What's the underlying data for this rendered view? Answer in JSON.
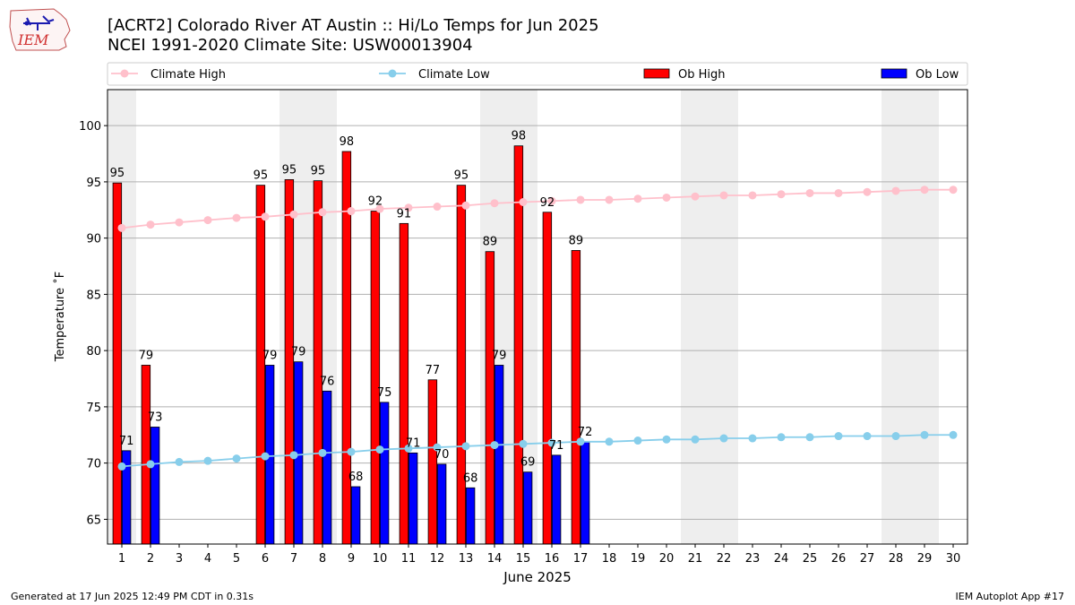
{
  "header": {
    "title_line1": "[ACRT2] Colorado River  AT Austin :: Hi/Lo Temps for Jun 2025",
    "title_line2": "NCEI 1991-2020 Climate Site: USW00013904",
    "logo_text": "IEM"
  },
  "footer": {
    "generated": "Generated at 17 Jun 2025 12:49 PM CDT in 0.31s",
    "app": "IEM Autoplot App #17"
  },
  "colors": {
    "ob_high": "#ff0000",
    "ob_low": "#0000ff",
    "climate_high": "#ffc0cb",
    "climate_low": "#87ceeb",
    "weekend_shade": "#eeeeee",
    "grid": "#b0b0b0"
  },
  "chart_data": {
    "type": "bar",
    "xlabel": "June 2025",
    "ylabel": "Temperature ˚F",
    "ylim": [
      62.8,
      103.2
    ],
    "yticks": [
      65,
      70,
      75,
      80,
      85,
      90,
      95,
      100
    ],
    "grid": "horizontal",
    "legend_position": "top",
    "categories": [
      "1",
      "2",
      "3",
      "4",
      "5",
      "6",
      "7",
      "8",
      "9",
      "10",
      "11",
      "12",
      "13",
      "14",
      "15",
      "16",
      "17",
      "18",
      "19",
      "20",
      "21",
      "22",
      "23",
      "24",
      "25",
      "26",
      "27",
      "28",
      "29",
      "30"
    ],
    "shaded_days": [
      1,
      7,
      8,
      14,
      15,
      21,
      22,
      28,
      29
    ],
    "series": [
      {
        "name": "Climate High",
        "kind": "line",
        "values": [
          90.9,
          91.2,
          91.4,
          91.6,
          91.8,
          91.9,
          92.1,
          92.3,
          92.4,
          92.6,
          92.7,
          92.8,
          92.9,
          93.1,
          93.2,
          93.3,
          93.4,
          93.4,
          93.5,
          93.6,
          93.7,
          93.8,
          93.8,
          93.9,
          94.0,
          94.0,
          94.1,
          94.2,
          94.3,
          94.3
        ]
      },
      {
        "name": "Climate Low",
        "kind": "line",
        "values": [
          69.7,
          69.9,
          70.1,
          70.2,
          70.4,
          70.6,
          70.7,
          70.9,
          71.0,
          71.2,
          71.3,
          71.4,
          71.5,
          71.6,
          71.7,
          71.8,
          71.9,
          71.9,
          72.0,
          72.1,
          72.1,
          72.2,
          72.2,
          72.3,
          72.3,
          72.4,
          72.4,
          72.4,
          72.5,
          72.5
        ]
      },
      {
        "name": "Ob High",
        "kind": "bar",
        "values": [
          95,
          79,
          null,
          null,
          null,
          95,
          95,
          95,
          98,
          92,
          91,
          77,
          95,
          89,
          98,
          92,
          89,
          null,
          null,
          null,
          null,
          null,
          null,
          null,
          null,
          null,
          null,
          null,
          null,
          null
        ],
        "bar_tops": [
          94.9,
          78.7,
          null,
          null,
          null,
          94.7,
          95.2,
          95.1,
          97.7,
          92.4,
          91.3,
          77.4,
          94.7,
          88.8,
          98.2,
          92.3,
          88.9,
          null,
          null,
          null,
          null,
          null,
          null,
          null,
          null,
          null,
          null,
          null,
          null,
          null
        ]
      },
      {
        "name": "Ob Low",
        "kind": "bar",
        "values": [
          71,
          73,
          null,
          null,
          null,
          79,
          79,
          76,
          68,
          75,
          71,
          70,
          68,
          79,
          69,
          71,
          72,
          null,
          null,
          null,
          null,
          null,
          null,
          null,
          null,
          null,
          null,
          null,
          null,
          null
        ],
        "bar_tops": [
          71.1,
          73.2,
          null,
          null,
          null,
          78.7,
          79.0,
          76.4,
          67.9,
          75.4,
          70.9,
          69.9,
          67.8,
          78.7,
          69.2,
          70.7,
          71.9,
          null,
          null,
          null,
          null,
          null,
          null,
          null,
          null,
          null,
          null,
          null,
          null,
          null
        ]
      }
    ]
  }
}
